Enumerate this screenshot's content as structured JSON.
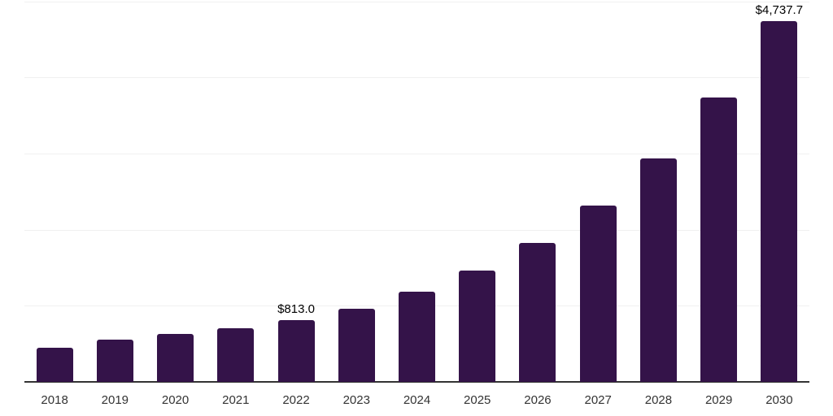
{
  "page": {
    "background_color": "#ffffff"
  },
  "chart_data": {
    "type": "bar",
    "title": "",
    "xlabel": "",
    "ylabel": "",
    "categories": [
      "2018",
      "2019",
      "2020",
      "2021",
      "2022",
      "2023",
      "2024",
      "2025",
      "2026",
      "2027",
      "2028",
      "2029",
      "2030"
    ],
    "values": [
      450,
      555,
      630,
      705,
      813.0,
      960,
      1185,
      1465,
      1830,
      2315,
      2935,
      3735,
      4737.7
    ],
    "data_labels": [
      "",
      "",
      "",
      "",
      "$813.0",
      "",
      "",
      "",
      "",
      "",
      "",
      "",
      "$4,737.7"
    ],
    "ylim": [
      0,
      5000
    ],
    "gridline_step": 1000,
    "grid": true,
    "legend": "none",
    "y_axis_labels_visible": false,
    "bar_color": "#341349",
    "axis_color": "#333333",
    "gridline_color": "#f0f0f0",
    "data_label_color": "#000000",
    "tick_label_color": "#333333"
  }
}
